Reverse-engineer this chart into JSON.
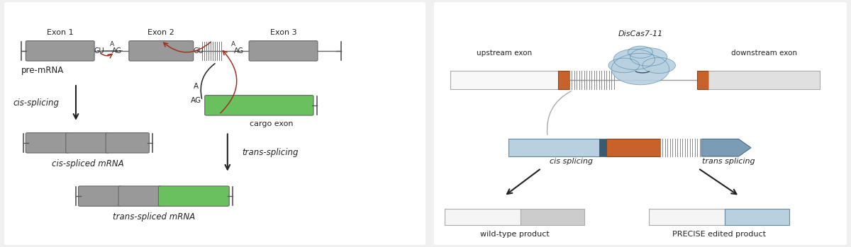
{
  "bg_color": "#f0f0f0",
  "panel_bg": "#ffffff",
  "panel_border_color": "#cccccc",
  "gray_exon": "#999999",
  "green_exon": "#6abf5e",
  "light_blue_exon": "#b8d0e0",
  "dark_blue_exon": "#7a9db5",
  "orange_exon": "#c8622a",
  "red_arrow": "#a03020",
  "black": "#222222",
  "white": "#ffffff",
  "label_exon1": "Exon 1",
  "label_exon2": "Exon 2",
  "label_exon3": "Exon 3",
  "label_premrna": "pre-mRNA",
  "label_cis_splicing": "cis-splicing",
  "label_cis_mrna": "cis-spliced mRNA",
  "label_trans_splicing": "trans-splicing",
  "label_trans_mrna": "trans-spliced mRNA",
  "label_cargo": "cargo exon",
  "label_discas": "DisCas7-11",
  "label_upstream": "upstream exon",
  "label_downstream": "downstream exon",
  "label_cis_splice": "cis splicing",
  "label_trans_splice": "trans splicing",
  "label_wt": "wild-type product",
  "label_precise": "PRECISE edited product"
}
